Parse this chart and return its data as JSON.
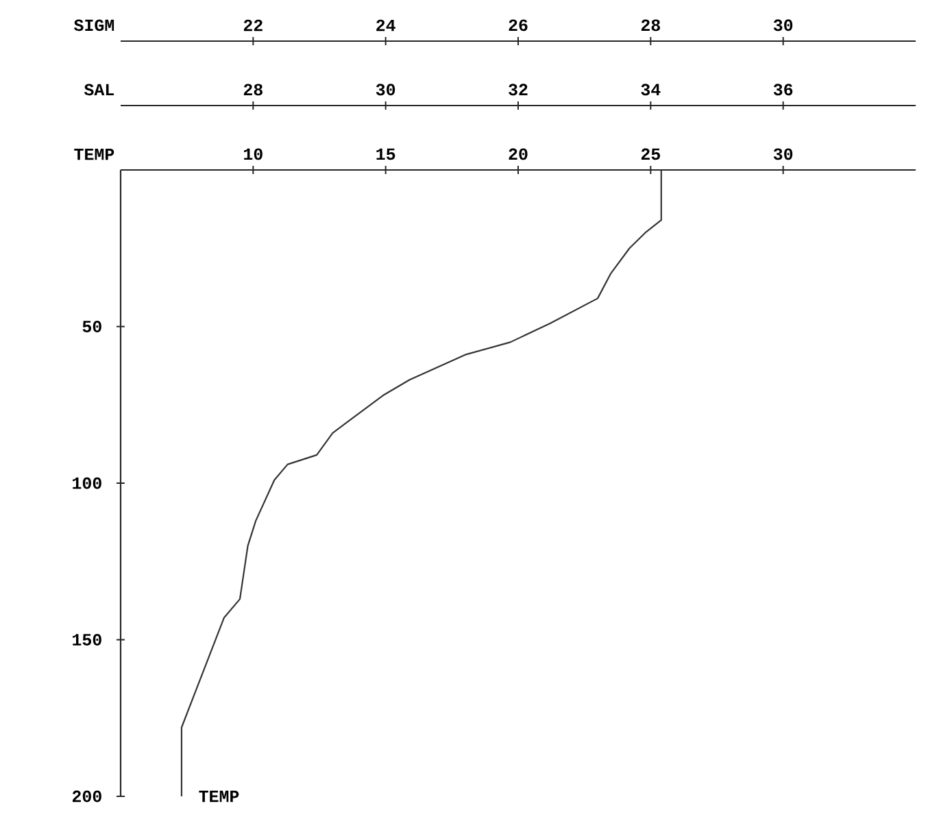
{
  "chart_data": [
    {
      "type": "line",
      "annotations": [
        "SIGM",
        "22",
        "24",
        "26",
        "28",
        "30"
      ],
      "xlabel": "TEMP",
      "xlim": [
        5,
        35
      ],
      "xticks": [
        10,
        15,
        20,
        25,
        30
      ],
      "x2label": "SAL",
      "x2lim": [
        26,
        38
      ],
      "x2ticks": [
        28,
        30,
        32,
        34,
        36
      ],
      "ylim": [
        200,
        0
      ],
      "yticks": [
        50,
        100,
        150,
        200
      ],
      "marker": "none",
      "line_style": "solid",
      "series": [
        {
          "name": "TEMP",
          "color": "#333333",
          "x": [
            25.4,
            25.4,
            24.8,
            24.2,
            23.5,
            23.0,
            21.2,
            19.7,
            18.0,
            15.9,
            14.9,
            13.0,
            12.4,
            11.3,
            10.8,
            10.1,
            9.8,
            9.5,
            8.9,
            7.3,
            7.3
          ],
          "values": [
            0,
            16,
            20,
            25,
            33,
            41,
            49,
            55,
            59,
            67,
            72,
            84,
            91,
            94,
            99,
            112,
            120,
            137,
            143,
            178,
            200
          ]
        }
      ]
    }
  ]
}
